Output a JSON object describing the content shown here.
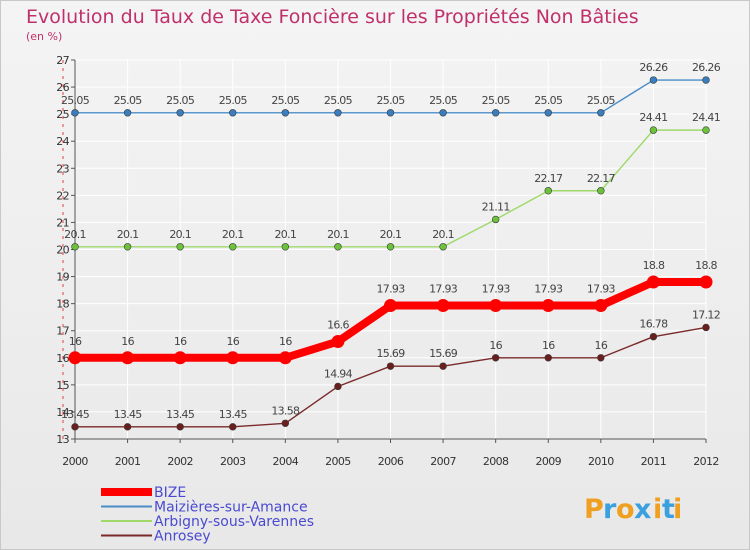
{
  "chart_data": {
    "type": "line",
    "title": "Evolution du Taux de Taxe Foncière sur les Propriétés Non Bâties",
    "ylabel": "(en %)",
    "xlabel": "",
    "x": [
      "2000",
      "2001",
      "2002",
      "2003",
      "2004",
      "2005",
      "2006",
      "2007",
      "2008",
      "2009",
      "2010",
      "2011",
      "2012"
    ],
    "ylim": [
      13,
      27
    ],
    "yticks": [
      13,
      14,
      15,
      16,
      17,
      18,
      19,
      20,
      21,
      22,
      23,
      24,
      25,
      26,
      27
    ],
    "grid": true,
    "legend_position": "bottom-left",
    "series": [
      {
        "name": "BIZE",
        "color": "#ff0000",
        "point_color": "#ff0000",
        "width": "thick",
        "values": [
          16,
          16,
          16,
          16,
          16,
          16.6,
          17.93,
          17.93,
          17.93,
          17.93,
          17.93,
          18.8,
          18.8
        ],
        "labels": [
          "16",
          "16",
          "16",
          "16",
          "16",
          "16.6",
          "17.93",
          "17.93",
          "17.93",
          "17.93",
          "17.93",
          "18.8",
          "18.8"
        ]
      },
      {
        "name": "Maizières-sur-Amance",
        "color": "#4a8cc8",
        "point_color": "#3a7ec0",
        "width": "thin",
        "values": [
          25.05,
          25.05,
          25.05,
          25.05,
          25.05,
          25.05,
          25.05,
          25.05,
          25.05,
          25.05,
          25.05,
          26.26,
          26.26
        ],
        "labels": [
          "25.05",
          "25.05",
          "25.05",
          "25.05",
          "25.05",
          "25.05",
          "25.05",
          "25.05",
          "25.05",
          "25.05",
          "25.05",
          "26.26",
          "26.26"
        ]
      },
      {
        "name": "Arbigny-sous-Varennes",
        "color": "#9ed96a",
        "point_color": "#6cc23a",
        "width": "thin",
        "values": [
          20.1,
          20.1,
          20.1,
          20.1,
          20.1,
          20.1,
          20.1,
          20.1,
          21.11,
          22.17,
          22.17,
          24.41,
          24.41
        ],
        "labels": [
          "20.1",
          "20.1",
          "20.1",
          "20.1",
          "20.1",
          "20.1",
          "20.1",
          "20.1",
          "21.11",
          "22.17",
          "22.17",
          "24.41",
          "24.41"
        ]
      },
      {
        "name": "Anrosey",
        "color": "#7a2a2a",
        "point_color": "#6a1e1e",
        "width": "thin",
        "values": [
          13.45,
          13.45,
          13.45,
          13.45,
          13.58,
          14.94,
          15.69,
          15.69,
          16,
          16,
          16,
          16.78,
          17.12
        ],
        "labels": [
          "13.45",
          "13.45",
          "13.45",
          "13.45",
          "13.58",
          "14.94",
          "15.69",
          "15.69",
          "16",
          "16",
          "16",
          "16.78",
          "17.12"
        ]
      }
    ]
  },
  "legend": {
    "items": [
      "BIZE",
      "Maizières-sur-Amance",
      "Arbigny-sous-Varennes",
      "Anrosey"
    ]
  },
  "logo": {
    "letters": [
      "P",
      "r",
      "o",
      "x",
      "i",
      "t",
      "i"
    ],
    "colors": [
      "#f0a020",
      "#3aa0e0",
      "#f0a020",
      "#3aa0e0",
      "#f0a020",
      "#3aa0e0",
      "#f0a020"
    ]
  }
}
